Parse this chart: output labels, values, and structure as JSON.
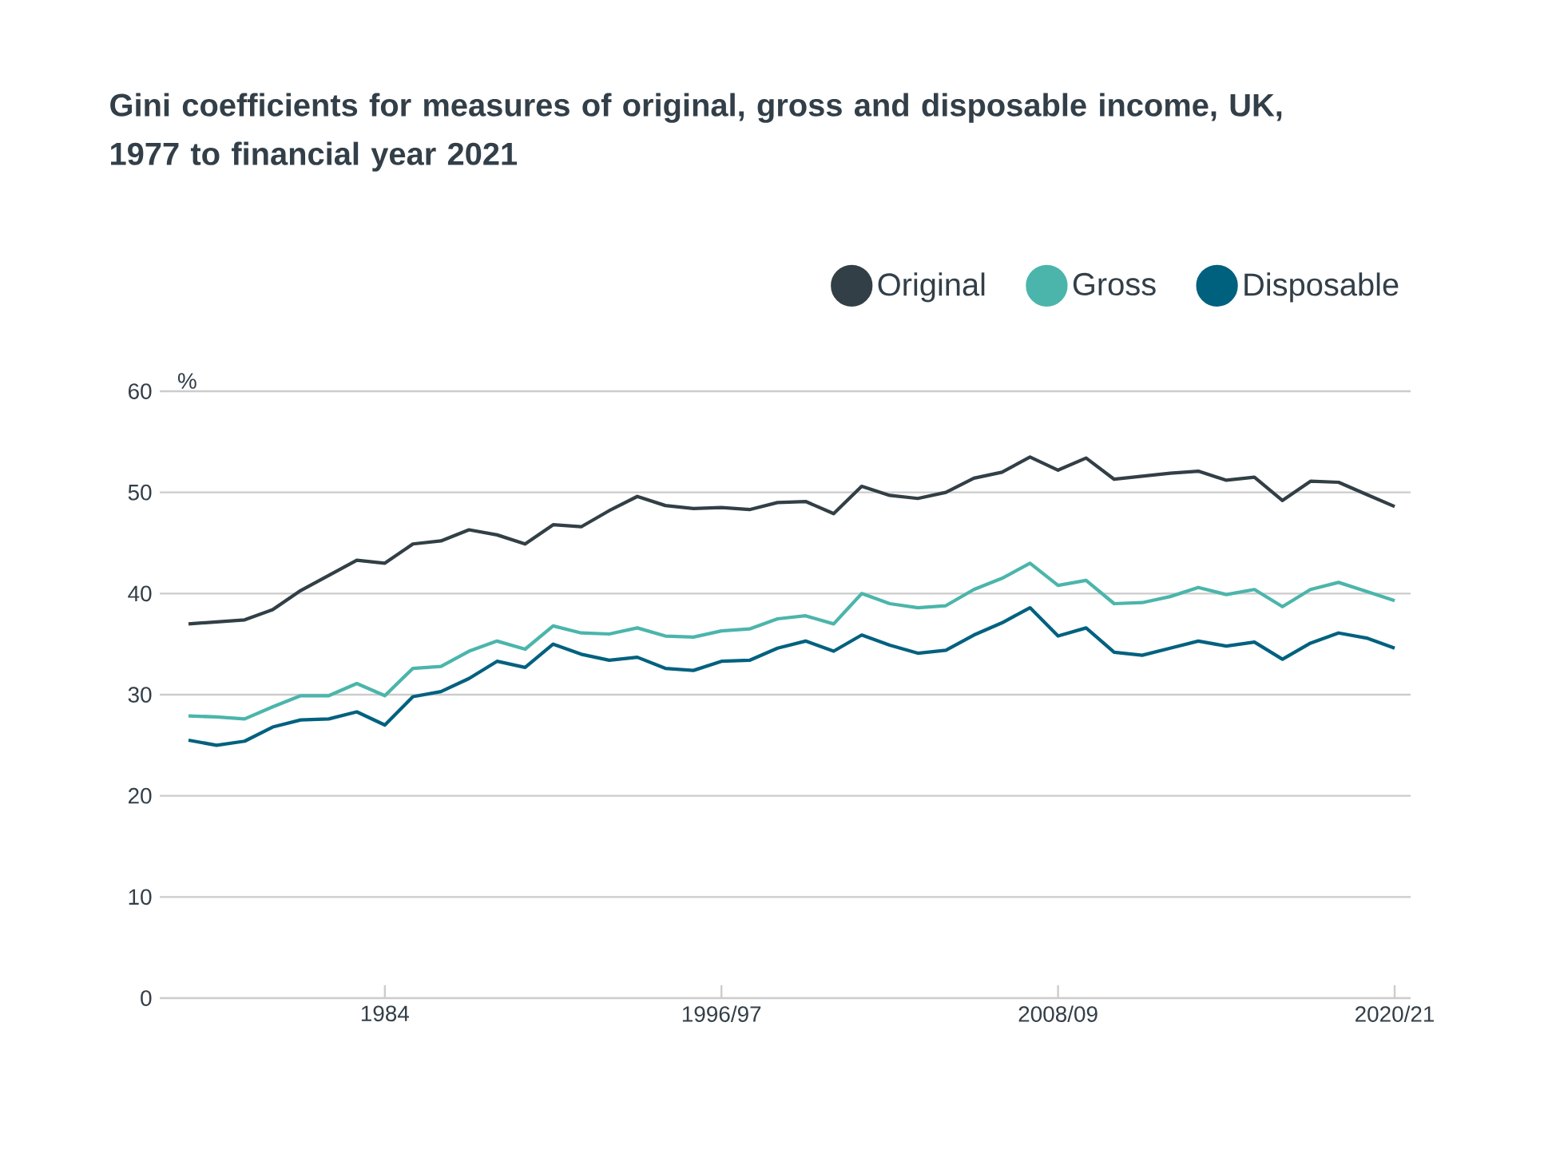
{
  "chart_data": {
    "type": "line",
    "title": "Gini coefficients for measures of original, gross and disposable income, UK, 1977 to financial year 2021",
    "ylabel": "%",
    "categories": [
      null,
      null,
      null,
      null,
      null,
      null,
      null,
      "1984",
      null,
      null,
      null,
      null,
      null,
      null,
      null,
      null,
      null,
      null,
      null,
      "1996/97",
      null,
      null,
      null,
      null,
      null,
      null,
      null,
      null,
      null,
      null,
      null,
      "2008/09",
      null,
      null,
      null,
      null,
      null,
      null,
      null,
      null,
      null,
      null,
      null,
      "2020/21"
    ],
    "series": [
      {
        "name": "Original",
        "color": "#323f46",
        "values": [
          37.0,
          37.2,
          37.4,
          38.4,
          40.3,
          41.8,
          43.3,
          43.0,
          44.9,
          45.2,
          46.3,
          45.8,
          44.9,
          46.8,
          46.6,
          48.2,
          49.6,
          48.7,
          48.4,
          48.5,
          48.3,
          49.0,
          49.1,
          47.9,
          50.6,
          49.7,
          49.4,
          50.0,
          51.4,
          52.0,
          53.5,
          52.2,
          53.4,
          51.3,
          51.6,
          51.9,
          52.1,
          51.2,
          51.5,
          49.2,
          51.1,
          51.0,
          49.8,
          48.6
        ]
      },
      {
        "name": "Gross",
        "color": "#4bb5ab",
        "values": [
          27.9,
          27.8,
          27.6,
          28.8,
          29.9,
          29.9,
          31.1,
          29.9,
          32.6,
          32.8,
          34.3,
          35.3,
          34.5,
          36.8,
          36.1,
          36.0,
          36.6,
          35.8,
          35.7,
          36.3,
          36.5,
          37.5,
          37.8,
          37.0,
          40.0,
          39.0,
          38.6,
          38.8,
          40.4,
          41.5,
          43.0,
          40.8,
          41.3,
          39.0,
          39.1,
          39.7,
          40.6,
          39.9,
          40.4,
          38.7,
          40.4,
          41.1,
          40.2,
          39.3
        ]
      },
      {
        "name": "Disposable",
        "color": "#00617f",
        "values": [
          25.5,
          25.0,
          25.4,
          26.8,
          27.5,
          27.6,
          28.3,
          27.0,
          29.8,
          30.3,
          31.6,
          33.3,
          32.7,
          35.0,
          34.0,
          33.4,
          33.7,
          32.6,
          32.4,
          33.3,
          33.4,
          34.6,
          35.3,
          34.3,
          35.9,
          34.9,
          34.1,
          34.4,
          35.9,
          37.1,
          38.6,
          35.8,
          36.6,
          34.2,
          33.9,
          34.6,
          35.3,
          34.8,
          35.2,
          33.5,
          35.1,
          36.1,
          35.6,
          34.6
        ]
      }
    ],
    "ylim": [
      0,
      60
    ],
    "yticks": [
      0,
      10,
      20,
      30,
      40,
      50,
      60
    ],
    "grid": "y",
    "legend": "top right",
    "marker": "none",
    "line_style": "solid"
  }
}
